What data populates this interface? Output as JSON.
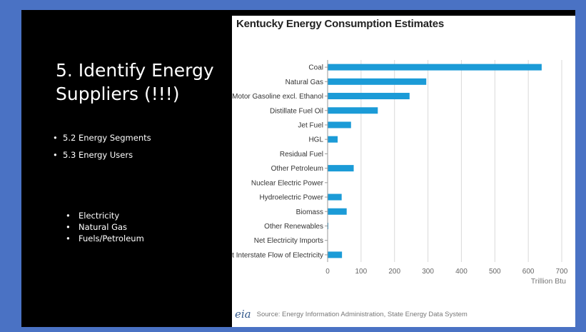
{
  "slide": {
    "title": "5. Identify Energy\nSuppliers (!!!)",
    "bullets": [
      "5.2 Energy Segments",
      "5.3 Energy Users"
    ],
    "sub_bullets": [
      "Electricity",
      "Natural Gas",
      "Fuels/Petroleum"
    ]
  },
  "colors": {
    "frame": "#4a72c4",
    "slide_background": "#000000",
    "bar": "#1b9bd7",
    "gridline": "#d9d9d9"
  },
  "chart_data": {
    "type": "bar",
    "orientation": "horizontal",
    "title": "Kentucky Energy Consumption Estimates",
    "xlabel": "Trillion Btu",
    "ylabel": "",
    "categories": [
      "Coal",
      "Natural Gas",
      "Motor Gasoline excl. Ethanol",
      "Distillate Fuel Oil",
      "Jet Fuel",
      "HGL",
      "Residual Fuel",
      "Other Petroleum",
      "Nuclear Electric Power",
      "Hydroelectric Power",
      "Biomass",
      "Other Renewables",
      "Net Electricity Imports",
      "Net Interstate Flow of Electricity"
    ],
    "values": [
      640,
      295,
      245,
      150,
      70,
      30,
      0,
      78,
      0,
      42,
      57,
      2,
      0,
      43
    ],
    "xlim": [
      0,
      700
    ],
    "xticks": [
      "0",
      "100",
      "200",
      "300",
      "400",
      "500",
      "600",
      "700"
    ],
    "grid": "vertical",
    "legend": "none"
  },
  "source": {
    "logo": "eia",
    "text": "Source: Energy Information Administration, State Energy Data System"
  }
}
